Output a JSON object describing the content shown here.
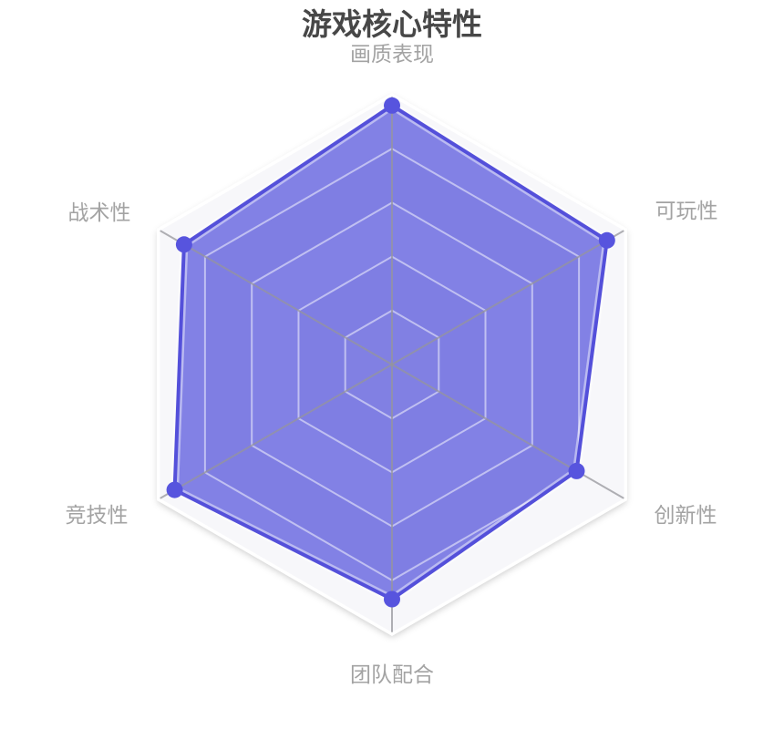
{
  "chart_data": {
    "type": "radar",
    "title": "游戏核心特性",
    "shape": "hexagon",
    "levels": 5,
    "max": 100,
    "legend": "none",
    "indicators": [
      {
        "name": "画质表现",
        "max": 100
      },
      {
        "name": "可玩性",
        "max": 100
      },
      {
        "name": "创新性",
        "max": 100
      },
      {
        "name": "团队配合",
        "max": 100
      },
      {
        "name": "竞技性",
        "max": 100
      },
      {
        "name": "战术性",
        "max": 100
      }
    ],
    "series": [
      {
        "name": "游戏核心特性",
        "values": [
          96,
          92,
          79,
          87,
          93,
          89
        ]
      }
    ],
    "style": {
      "line_color": "#5450da",
      "symbol_color": "#5754de",
      "symbol_radius": 9,
      "line_width": 4,
      "area_color": "rgba(85,83,220,0.72)",
      "area_edge_highlight": "rgba(255,255,255,0.45)",
      "ring_line_color": "rgba(255,255,255,0.5)",
      "outer_ring_color": "#ffffff",
      "axis_line_color": "rgba(150,150,155,0.75)",
      "band_colors": [
        "#f7f7fa",
        "#ececf2",
        "#f7f7fa",
        "#ececf2",
        "#f2f2f5"
      ],
      "shadow_color": "rgba(0,0,0,0.22)",
      "title_color": "#474747",
      "label_color": "#a3a3a3",
      "background": "#ffffff"
    }
  }
}
